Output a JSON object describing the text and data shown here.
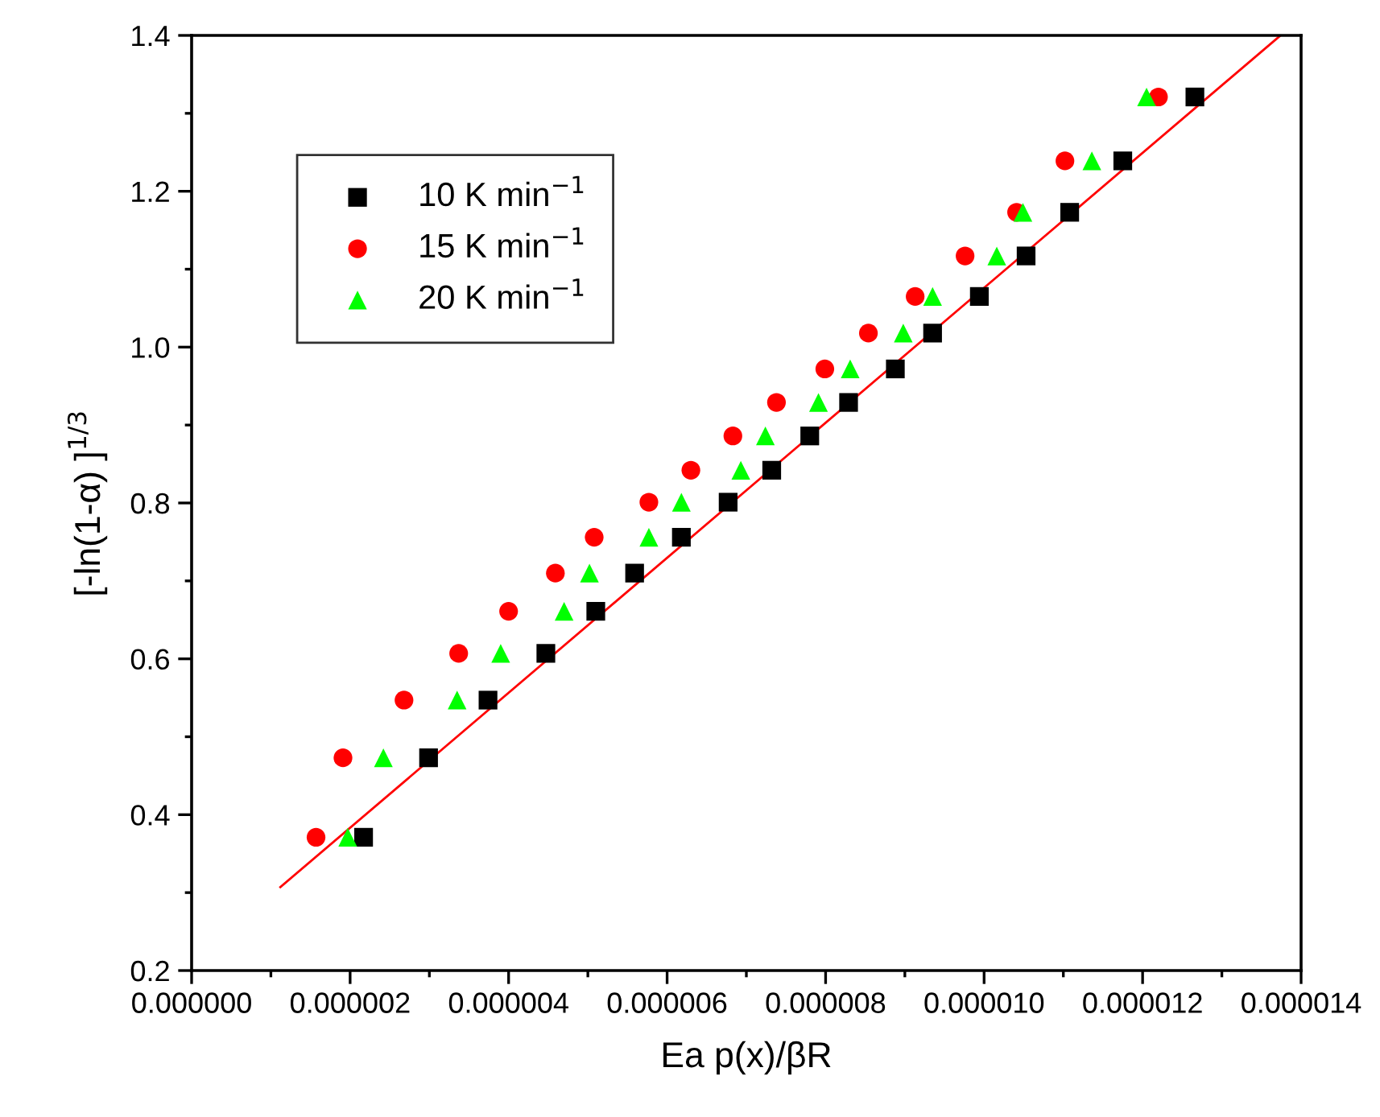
{
  "chart_data": {
    "type": "scatter",
    "xlabel": "Ea p(x)/βR",
    "ylabel": "[-ln(1-α) ]$^{1/3}$",
    "xlim": [
      0,
      1.4e-05
    ],
    "ylim": [
      0.2,
      1.4
    ],
    "xticks": [
      {
        "value": 0,
        "label": "0.000000"
      },
      {
        "value": 1e-06,
        "label": null
      },
      {
        "value": 2e-06,
        "label": "0.000002"
      },
      {
        "value": 3e-06,
        "label": null
      },
      {
        "value": 4e-06,
        "label": "0.000004"
      },
      {
        "value": 5e-06,
        "label": null
      },
      {
        "value": 6e-06,
        "label": "0.000006"
      },
      {
        "value": 7e-06,
        "label": null
      },
      {
        "value": 8e-06,
        "label": "0.000008"
      },
      {
        "value": 9e-06,
        "label": null
      },
      {
        "value": 1e-05,
        "label": "0.000010"
      },
      {
        "value": 1.1e-05,
        "label": null
      },
      {
        "value": 1.2e-05,
        "label": "0.000012"
      },
      {
        "value": 1.3e-05,
        "label": null
      },
      {
        "value": 1.4e-05,
        "label": "0.000014"
      }
    ],
    "yticks": [
      0.2,
      {
        "value": 0.3,
        "label": null
      },
      0.4,
      {
        "value": 0.5,
        "label": null
      },
      0.6,
      {
        "value": 0.7,
        "label": null
      },
      0.8,
      {
        "value": 0.9,
        "label": null
      },
      {
        "value": 1,
        "label": "1.0"
      },
      {
        "value": 1.1,
        "label": null
      },
      1.2,
      {
        "value": 1.3,
        "label": null
      },
      1.4
    ],
    "legend": "top left",
    "grid": false,
    "series": [
      {
        "name": "10 K min$^{−1}$",
        "color": "#000000",
        "marker": "square",
        "x": [
          2.17e-06,
          2.99e-06,
          3.74e-06,
          4.47e-06,
          5.1e-06,
          5.59e-06,
          6.18e-06,
          6.77e-06,
          7.32e-06,
          7.8e-06,
          8.29e-06,
          8.88e-06,
          9.35e-06,
          9.94e-06,
          1.053e-05,
          1.108e-05,
          1.175e-05,
          1.266e-05
        ],
        "values": [
          0.371,
          0.473,
          0.547,
          0.607,
          0.661,
          0.71,
          0.756,
          0.801,
          0.842,
          0.886,
          0.929,
          0.972,
          1.018,
          1.065,
          1.117,
          1.173,
          1.239,
          1.321
        ]
      },
      {
        "name": "15 K min$^{−1}$",
        "color": "#ff0000",
        "marker": "circle",
        "x": [
          1.57e-06,
          1.91e-06,
          2.68e-06,
          3.37e-06,
          4e-06,
          4.59e-06,
          5.08e-06,
          5.77e-06,
          6.3e-06,
          6.83e-06,
          7.38e-06,
          7.99e-06,
          8.54e-06,
          9.13e-06,
          9.76e-06,
          1.041e-05,
          1.102e-05,
          1.22e-05
        ],
        "values": [
          0.371,
          0.473,
          0.547,
          0.607,
          0.661,
          0.71,
          0.756,
          0.801,
          0.842,
          0.886,
          0.929,
          0.972,
          1.018,
          1.065,
          1.117,
          1.173,
          1.239,
          1.321
        ]
      },
      {
        "name": "20 K min$^{−1}$",
        "color": "#00ff00",
        "marker": "triangle",
        "x": [
          1.97e-06,
          2.42e-06,
          3.35e-06,
          3.9e-06,
          4.7e-06,
          5.02e-06,
          5.77e-06,
          6.18e-06,
          6.93e-06,
          7.24e-06,
          7.91e-06,
          8.31e-06,
          8.98e-06,
          9.35e-06,
          1.016e-05,
          1.049e-05,
          1.136e-05,
          1.205e-05
        ],
        "values": [
          0.371,
          0.473,
          0.547,
          0.607,
          0.661,
          0.71,
          0.756,
          0.801,
          0.842,
          0.886,
          0.929,
          0.972,
          1.018,
          1.065,
          1.117,
          1.173,
          1.239,
          1.321
        ]
      },
      {
        "type": "line",
        "color": "#ff0000",
        "line_style": "solid",
        "x": [
          1.12e-06,
          1.374e-05
        ],
        "values": [
          0.307,
          1.4
        ]
      }
    ]
  }
}
